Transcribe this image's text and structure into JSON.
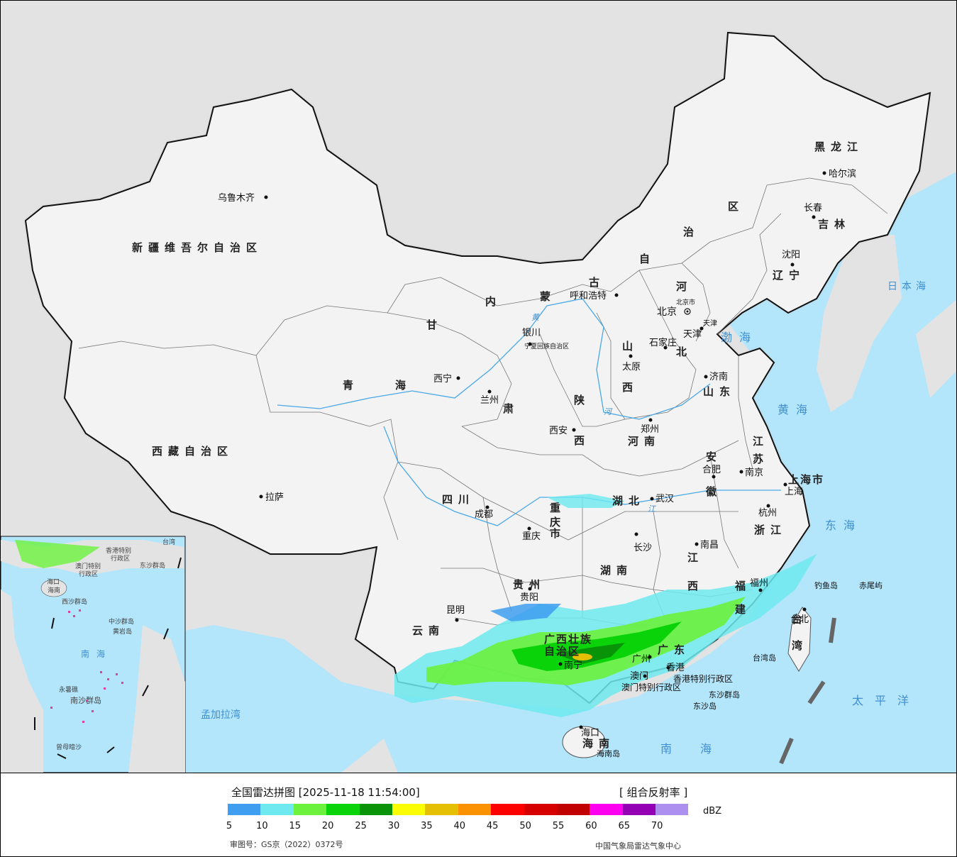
{
  "legend": {
    "title": "全国雷达拼图 [2025-11-18 11:54:00]",
    "product": "[ 组合反射率 ]",
    "unit": "dBZ",
    "approval": "审图号：GS京（2022）0372号",
    "producer": "中国气象局雷达气象中心",
    "ticks": [
      "5",
      "10",
      "15",
      "20",
      "25",
      "30",
      "35",
      "40",
      "45",
      "50",
      "55",
      "60",
      "65",
      "70"
    ],
    "colors": [
      "#3f9ef0",
      "#6de9ef",
      "#6cf23c",
      "#0bd30a",
      "#089308",
      "#fbfe02",
      "#e5bf03",
      "#fc9101",
      "#fd0000",
      "#d60000",
      "#c10000",
      "#fe00f0",
      "#9400b3",
      "#ad8ff0"
    ]
  },
  "map": {
    "colors": {
      "sea": "#b3e5fb",
      "land": "#f2f2f2",
      "outside": "#e3e3e3",
      "border": "#111111",
      "river": "#4aa8e8",
      "halo": "#cfcfcf"
    },
    "provinces": {
      "xinjiang": "新疆维吾尔自治区",
      "xizang": "西藏自治区",
      "qinghai_1": "青",
      "qinghai_2": "海",
      "gansu_1": "甘",
      "gansu_2": "肃",
      "nmg_1": "内",
      "nmg_2": "蒙",
      "nmg_3": "古",
      "nmg_4": "自",
      "nmg_5": "治",
      "nmg_6": "区",
      "heilongjiang": "黑龙江",
      "jilin": "吉林",
      "liaoning": "辽宁",
      "hebei_1": "河",
      "hebei_2": "北",
      "shanxi_1": "山",
      "shanxi_2": "西",
      "shaanxi_1": "陕",
      "shaanxi_2": "西",
      "henan": "河南",
      "shandong": "山东",
      "jiangsu_1": "江",
      "jiangsu_2": "苏",
      "anhui_1": "安",
      "anhui_2": "徽",
      "zhejiang": "浙江",
      "hubei": "湖北",
      "hunan": "湖南",
      "jiangxi_1": "江",
      "jiangxi_2": "西",
      "fujian_1": "福",
      "fujian_2": "建",
      "sichuan": "四川",
      "chongqing_1": "重",
      "chongqing_2": "庆",
      "chongqing_3": "市",
      "guizhou": "贵州",
      "yunnan": "云南",
      "guangxi_1": "广西壮族",
      "guangxi_2": "自治区",
      "guangdong": "广东",
      "hainan": "海南",
      "taiwan_1": "台",
      "taiwan_2": "湾",
      "shanghai": "上海市",
      "ningxia": "宁夏回族自治区",
      "beijing_shi": "北京市",
      "tianjin_shi": "天津",
      "hk": "香港特别行政区",
      "macao": "澳门特别行政区"
    },
    "cities": {
      "urumqi": "乌鲁木齐",
      "lhasa": "拉萨",
      "xining": "西宁",
      "lanzhou": "兰州",
      "yinchuan": "银川",
      "hohhot": "呼和浩特",
      "beijing": "北京",
      "tianjin": "天津",
      "shijiazhuang": "石家庄",
      "taiyuan": "太原",
      "jinan": "济南",
      "xian": "西安",
      "zhengzhou": "郑州",
      "hefei": "合肥",
      "nanjing": "南京",
      "shanghai": "上海",
      "hangzhou": "杭州",
      "wuhan": "武汉",
      "chengdu": "成都",
      "chongqing": "重庆",
      "changsha": "长沙",
      "nanchang": "南昌",
      "guiyang": "贵阳",
      "kunming": "昆明",
      "nanning": "南宁",
      "guangzhou": "广州",
      "fuzhou": "福州",
      "taibei": "台北",
      "haikou": "海口",
      "hongkong": "香港",
      "macau": "澳门",
      "shenyang": "沈阳",
      "changchun": "长春",
      "harbin": "哈尔滨",
      "diaoyudao": "钓鱼岛",
      "chiweiyu": "赤尾屿",
      "taiwandao": "台湾岛",
      "hainandao": "海南岛",
      "dongsha_1": "东沙群岛",
      "dongsha_2": "东沙岛"
    },
    "seas": {
      "bohai": "渤海",
      "huanghai": "黄海",
      "donghai": "东海",
      "nanhai": "南海",
      "taipingyang": "太平洋",
      "ribenhai": "日本海",
      "mengjialawan": "孟加拉湾",
      "yellow_river": "黄",
      "yellow_river_2": "河",
      "changjiang": "江"
    },
    "inset": {
      "nanhai": "南海",
      "xisha": "西沙群岛",
      "zhongsha": "中沙群岛",
      "huangyandao": "黄岩岛",
      "nansha": "南沙群岛",
      "hainan": "海南",
      "haikou": "海口",
      "zengmu": "曾母暗沙",
      "yongshu": "永暑礁",
      "hk": "香港特别",
      "macao": "澳门特别",
      "xzq": "行政区",
      "xzq2": "行政区",
      "dongsha": "东沙群岛",
      "taiwan": "台湾"
    }
  }
}
